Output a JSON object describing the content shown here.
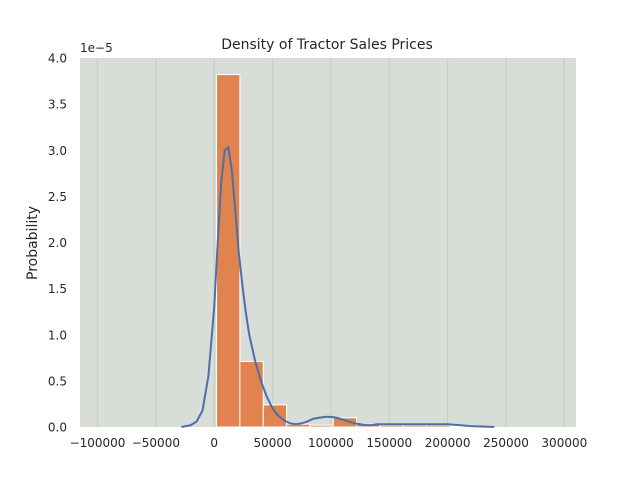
{
  "chart_data": {
    "type": "histogram",
    "title": "Density of Tractor Sales Prices",
    "xlabel": "",
    "ylabel": "Probability",
    "offset_text": "1e−5",
    "xlim": [
      -115000,
      310000
    ],
    "ylim": [
      0,
      4.0
    ],
    "x_ticks": [
      -100000,
      -50000,
      0,
      50000,
      100000,
      150000,
      200000,
      250000,
      300000
    ],
    "x_tick_labels": [
      "−100000",
      "−50000",
      "0",
      "50000",
      "100000",
      "150000",
      "200000",
      "250000",
      "300000"
    ],
    "y_ticks": [
      0.0,
      0.5,
      1.0,
      1.5,
      2.0,
      2.5,
      3.0,
      3.5,
      4.0
    ],
    "y_tick_labels": [
      "0.0",
      "0.5",
      "1.0",
      "1.5",
      "2.0",
      "2.5",
      "3.0",
      "3.5",
      "4.0"
    ],
    "grid": "vertical",
    "bins": [
      {
        "x0": 2000,
        "x1": 22000,
        "value": 3.82
      },
      {
        "x0": 22000,
        "x1": 42000,
        "value": 0.71
      },
      {
        "x0": 42000,
        "x1": 62000,
        "value": 0.24
      },
      {
        "x0": 62000,
        "x1": 82000,
        "value": 0.03
      },
      {
        "x0": 82000,
        "x1": 102000,
        "value": 0.02
      },
      {
        "x0": 102000,
        "x1": 122000,
        "value": 0.1
      },
      {
        "x0": 122000,
        "x1": 142000,
        "value": 0.03
      },
      {
        "x0": 142000,
        "x1": 162000,
        "value": 0.02
      },
      {
        "x0": 162000,
        "x1": 182000,
        "value": 0.02
      },
      {
        "x0": 182000,
        "x1": 202000,
        "value": 0.02
      },
      {
        "x0": 202000,
        "x1": 222000,
        "value": 0.01
      }
    ],
    "kde": {
      "x": [
        -28000,
        -20000,
        -15000,
        -10000,
        -5000,
        0,
        3000,
        6000,
        9000,
        12000,
        15000,
        18000,
        21000,
        24000,
        27000,
        30000,
        35000,
        40000,
        45000,
        50000,
        55000,
        60000,
        65000,
        70000,
        75000,
        80000,
        85000,
        90000,
        95000,
        100000,
        105000,
        110000,
        115000,
        120000,
        125000,
        130000,
        135000,
        140000,
        150000,
        160000,
        170000,
        180000,
        190000,
        200000,
        210000,
        220000,
        230000,
        240000
      ],
      "y": [
        0.0,
        0.02,
        0.06,
        0.18,
        0.55,
        1.3,
        2.0,
        2.65,
        3.0,
        3.03,
        2.8,
        2.35,
        1.9,
        1.55,
        1.25,
        1.0,
        0.72,
        0.5,
        0.33,
        0.2,
        0.12,
        0.07,
        0.04,
        0.03,
        0.04,
        0.06,
        0.09,
        0.1,
        0.11,
        0.11,
        0.1,
        0.08,
        0.06,
        0.04,
        0.03,
        0.02,
        0.02,
        0.03,
        0.03,
        0.03,
        0.03,
        0.03,
        0.03,
        0.03,
        0.02,
        0.01,
        0.005,
        0.0
      ]
    },
    "colors": {
      "background": "#d8ddd8",
      "grid": "#c8cec8",
      "bar": "#e0834f",
      "bar_edge": "#ffffff",
      "kde": "#4c6fa8",
      "axis_text": "#262626"
    }
  }
}
